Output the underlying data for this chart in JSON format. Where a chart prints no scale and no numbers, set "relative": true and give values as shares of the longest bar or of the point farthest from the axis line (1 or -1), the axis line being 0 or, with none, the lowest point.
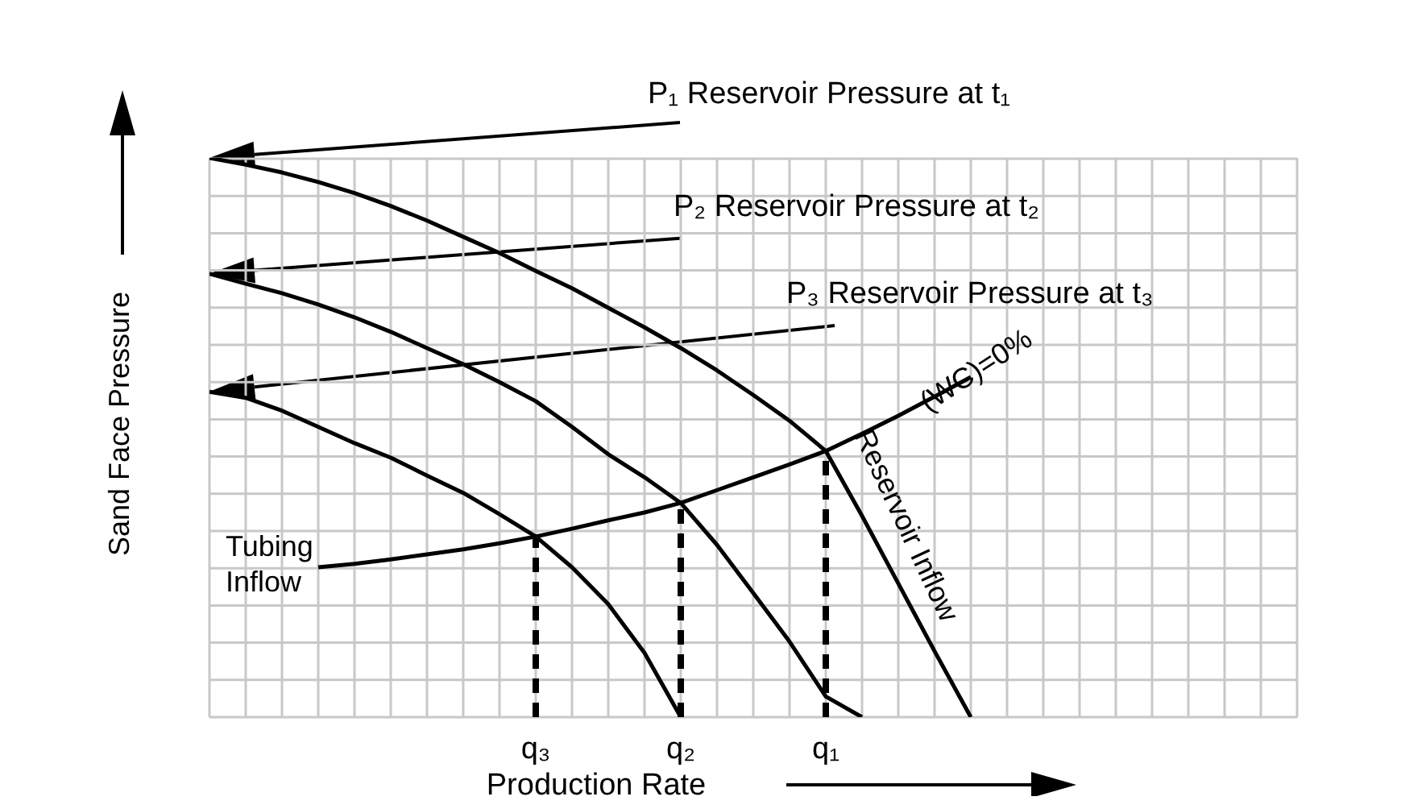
{
  "chart_data": {
    "type": "line",
    "relative": true,
    "xlabel": "Production Rate",
    "ylabel": "Sand Face Pressure",
    "grid": true,
    "marker": "none",
    "line_style": "solid",
    "tick_labels": "x",
    "categories": [
      null,
      null,
      null,
      null,
      null,
      null,
      null,
      null,
      null,
      "q₃",
      null,
      null,
      null,
      "q₂",
      null,
      null,
      null,
      "q₁",
      null,
      null,
      null,
      null,
      null,
      null,
      null,
      null,
      null,
      null,
      null,
      null,
      null
    ],
    "annotations": [
      "P₁ Reservoir Pressure at t₁",
      "P₂ Reservoir Pressure at t₂",
      "P₃ Reservoir Pressure at t₃",
      "(WC)=0%"
    ],
    "ref_lines": [
      {
        "axis": "x",
        "value": "q₃",
        "color": "#000000",
        "line_style": "dashed"
      },
      {
        "axis": "x",
        "value": "q₂",
        "color": "#000000",
        "line_style": "dashed"
      },
      {
        "axis": "x",
        "value": "q₁",
        "color": "#000000",
        "line_style": "dashed"
      }
    ],
    "series": [
      {
        "name": "Reservoir Inflow",
        "color": "#000000",
        "values": [
          1,
          0.988,
          0.974,
          0.957,
          0.937,
          0.914,
          0.888,
          0.859,
          0.83,
          0.798,
          0.767,
          0.732,
          0.697,
          0.66,
          0.62,
          0.576,
          0.53,
          0.476,
          0.36,
          0.239,
          0.118,
          0,
          null,
          null,
          null,
          null,
          null,
          null,
          null,
          null,
          null
        ]
      },
      {
        "color": "#000000",
        "values": [
          0.793,
          0.775,
          0.758,
          0.738,
          0.715,
          0.689,
          0.66,
          0.631,
          0.599,
          0.565,
          0.519,
          0.47,
          0.429,
          0.383,
          0.308,
          0.222,
          0.135,
          0.037,
          0,
          null,
          null,
          null,
          null,
          null,
          null,
          null,
          null,
          null,
          null,
          null,
          null
        ]
      },
      {
        "color": "#000000",
        "values": [
          0.582,
          0.571,
          0.548,
          0.519,
          0.49,
          0.464,
          0.432,
          0.401,
          0.363,
          0.323,
          0.268,
          0.202,
          0.115,
          0,
          null,
          null,
          null,
          null,
          null,
          null,
          null,
          null,
          null,
          null,
          null,
          null,
          null,
          null,
          null,
          null,
          null
        ]
      },
      {
        "name": "Tubing Inflow",
        "color": "#000000",
        "values": [
          null,
          null,
          null,
          0.268,
          0.274,
          0.282,
          0.291,
          0.3,
          0.311,
          0.323,
          0.337,
          0.352,
          0.366,
          0.383,
          0.406,
          0.429,
          0.452,
          0.476,
          0.507,
          0.539,
          0.573,
          0.608,
          null,
          null,
          null,
          null,
          null,
          null,
          null,
          null,
          null
        ]
      }
    ]
  }
}
